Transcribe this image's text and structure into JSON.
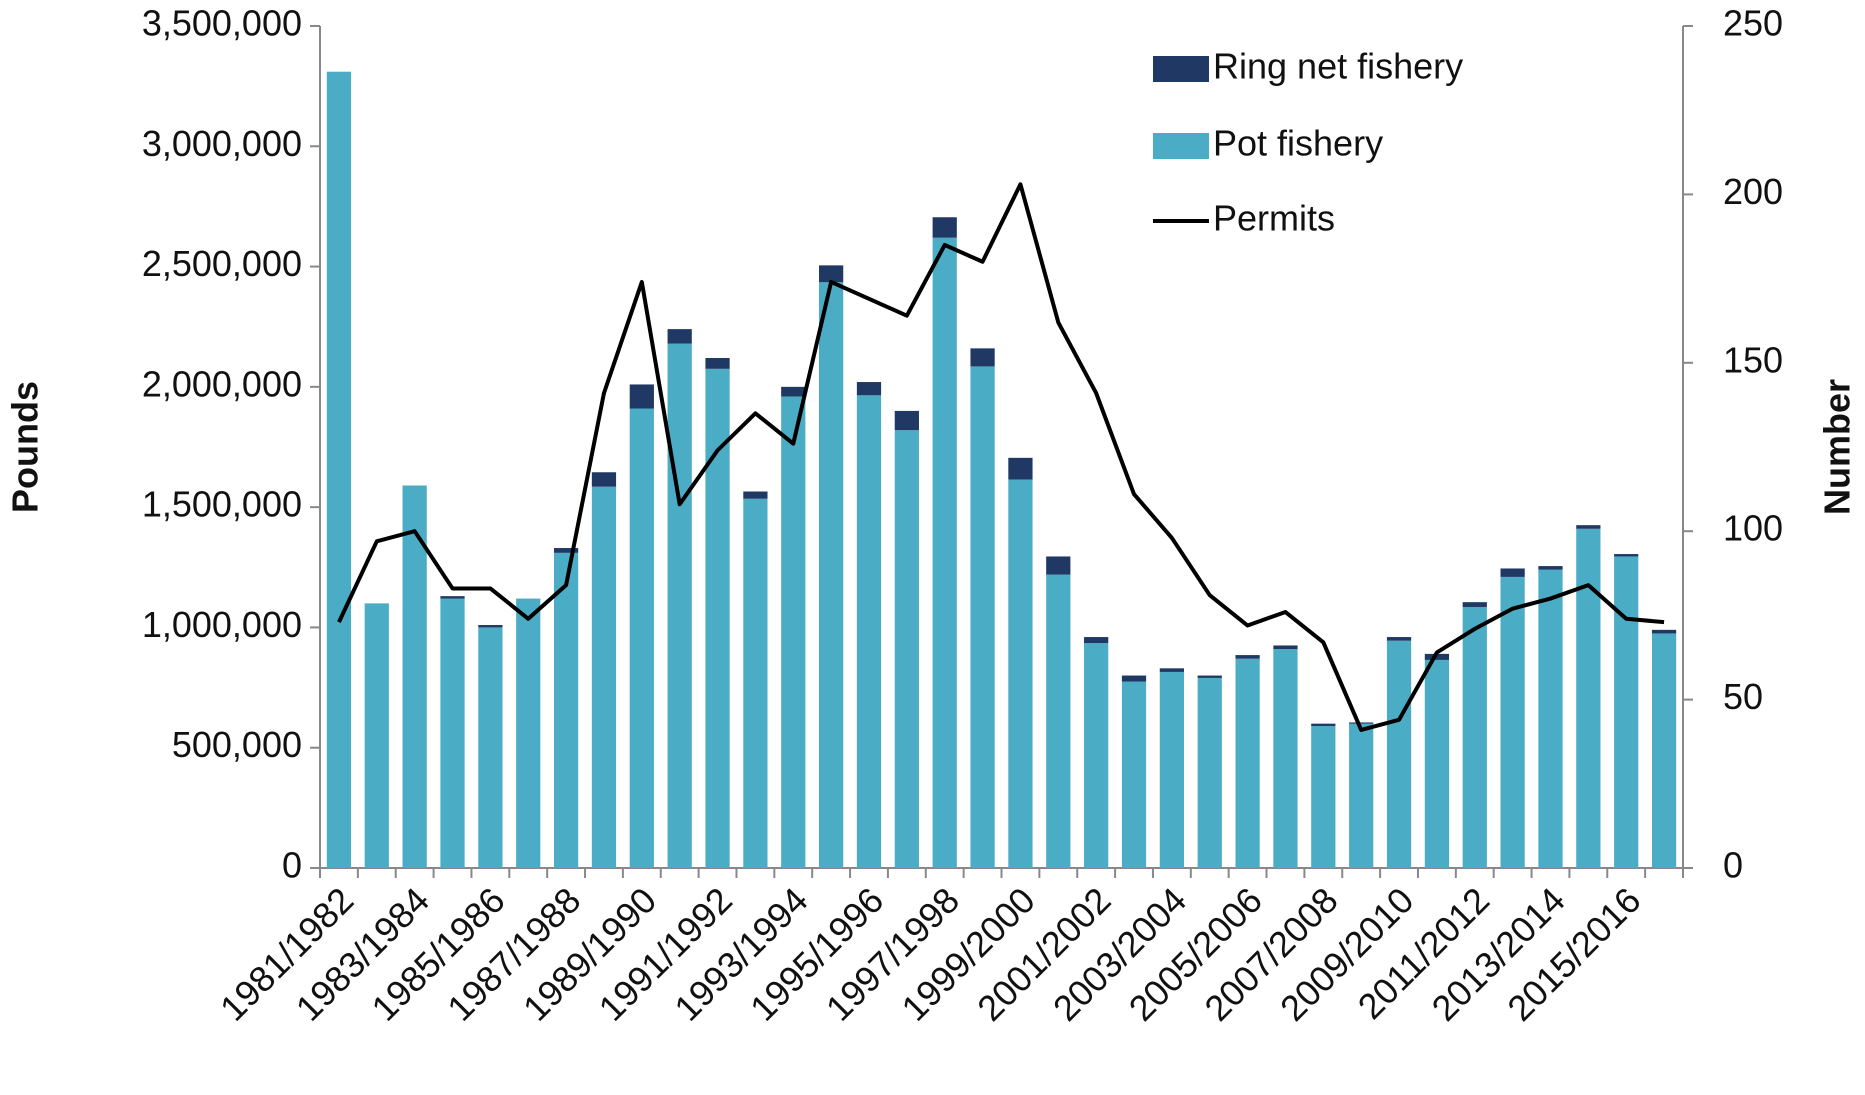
{
  "chart_data": {
    "type": "bar",
    "y_label": "Pounds",
    "y2_label": "Number",
    "categories": [
      "1981/1982",
      null,
      "1983/1984",
      null,
      "1985/1986",
      null,
      "1987/1988",
      null,
      "1989/1990",
      null,
      "1991/1992",
      null,
      "1993/1994",
      null,
      "1995/1996",
      null,
      "1997/1998",
      null,
      "1999/2000",
      null,
      "2001/2002",
      null,
      "2003/2004",
      null,
      "2005/2006",
      null,
      "2007/2008",
      null,
      "2009/2010",
      null,
      "2011/2012",
      null,
      "2013/2014",
      null,
      "2015/2016",
      null
    ],
    "series": [
      {
        "name": "Pot fishery",
        "type": "bar",
        "color": "#4bacc6",
        "values": [
          3310000,
          1100000,
          1590000,
          1120000,
          1000000,
          1120000,
          1310000,
          1585000,
          1910000,
          2180000,
          2075000,
          1535000,
          1960000,
          2435000,
          1965000,
          1820000,
          2620000,
          2085000,
          1615000,
          1220000,
          935000,
          775000,
          815000,
          790000,
          870000,
          910000,
          590000,
          600000,
          945000,
          865000,
          1085000,
          1210000,
          1240000,
          1410000,
          1295000,
          975000
        ]
      },
      {
        "name": "Ring net fishery",
        "type": "bar",
        "color": "#1f3864",
        "values": [
          0,
          0,
          0,
          10000,
          10000,
          0,
          20000,
          60000,
          100000,
          60000,
          45000,
          30000,
          40000,
          70000,
          55000,
          80000,
          85000,
          75000,
          90000,
          75000,
          25000,
          25000,
          15000,
          10000,
          15000,
          15000,
          10000,
          5000,
          15000,
          25000,
          20000,
          35000,
          15000,
          15000,
          10000,
          15000
        ]
      },
      {
        "name": "Permits",
        "type": "line",
        "axis": "y2",
        "color": "#000000",
        "values": [
          73,
          97,
          100,
          83,
          83,
          74,
          84,
          141,
          174,
          108,
          124,
          135,
          126,
          174,
          169,
          164,
          185,
          180,
          203,
          162,
          141,
          111,
          98,
          81,
          72,
          76,
          67,
          41,
          44,
          64,
          71,
          77,
          80,
          84,
          74,
          73
        ]
      }
    ],
    "legend_order": [
      "Ring net fishery",
      "Pot fishery",
      "Permits"
    ],
    "stacked": true,
    "ylim": [
      0,
      3500000
    ],
    "yticks": [
      0,
      {
        "value": 500000,
        "label": "500,000"
      },
      {
        "value": 1000000,
        "label": "1,000,000"
      },
      {
        "value": 1500000,
        "label": "1,500,000"
      },
      {
        "value": 2000000,
        "label": "2,000,000"
      },
      {
        "value": 2500000,
        "label": "2,500,000"
      },
      {
        "value": 3000000,
        "label": "3,000,000"
      },
      {
        "value": 3500000,
        "label": "3,500,000"
      }
    ],
    "y2lim": [
      0,
      250
    ],
    "y2ticks": [
      0,
      50,
      100,
      150,
      200,
      250
    ],
    "grid": false,
    "legend": "upper-center"
  }
}
